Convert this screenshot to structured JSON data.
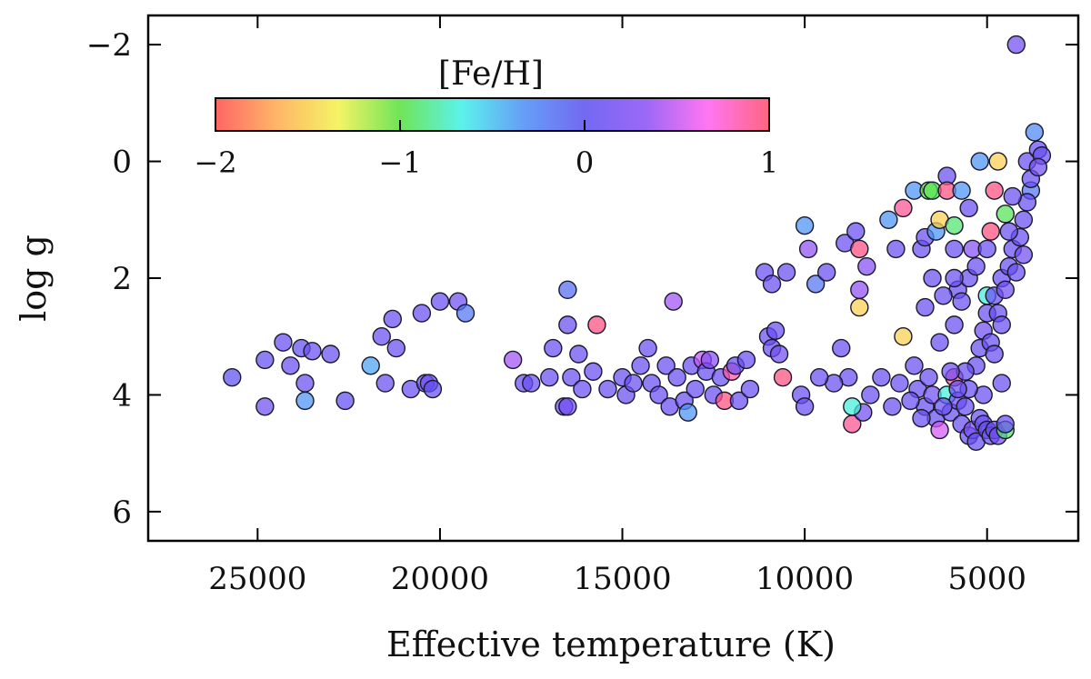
{
  "chart_data": {
    "type": "scatter",
    "title": "",
    "xlabel": "Effective temperature (K)",
    "ylabel": "log g",
    "xlim": [
      28000,
      2500
    ],
    "ylim": [
      6.5,
      -2.5
    ],
    "x_reversed": true,
    "y_reversed": true,
    "xticks": [
      25000,
      20000,
      15000,
      10000,
      5000
    ],
    "xtick_labels": [
      "25000",
      "20000",
      "15000",
      "10000",
      "5000"
    ],
    "yticks": [
      -2,
      0,
      2,
      4,
      6
    ],
    "ytick_labels": [
      "−2",
      "0",
      "2",
      "4",
      "6"
    ],
    "grid": false,
    "colorbar": {
      "title": "[Fe/H]",
      "range": [
        -2,
        1
      ],
      "ticks": [
        -2,
        -1,
        0,
        1
      ],
      "tick_labels": [
        "−2",
        "−1",
        "0",
        "1"
      ],
      "colormap": [
        "#ff4a4a",
        "#ffa94d",
        "#f2f24a",
        "#56e03a",
        "#3ff0e8",
        "#4a8ef5",
        "#5a4ff0",
        "#8a4df5",
        "#ff5ef0",
        "#ff4a6a"
      ],
      "placement": "top-left inside"
    },
    "points": [
      {
        "x": 25700,
        "y": 3.7,
        "feh": 0.0
      },
      {
        "x": 24800,
        "y": 3.4,
        "feh": 0.05
      },
      {
        "x": 24800,
        "y": 4.2,
        "feh": 0.15
      },
      {
        "x": 24300,
        "y": 3.1,
        "feh": 0.1
      },
      {
        "x": 24100,
        "y": 3.5,
        "feh": 0.1
      },
      {
        "x": 23800,
        "y": 3.2,
        "feh": 0.05
      },
      {
        "x": 23700,
        "y": 3.8,
        "feh": 0.1
      },
      {
        "x": 23700,
        "y": 4.1,
        "feh": -0.35
      },
      {
        "x": 23500,
        "y": 3.25,
        "feh": 0.1
      },
      {
        "x": 23000,
        "y": 3.3,
        "feh": 0.1
      },
      {
        "x": 22600,
        "y": 4.1,
        "feh": 0.05
      },
      {
        "x": 21900,
        "y": 3.5,
        "feh": -0.4
      },
      {
        "x": 21600,
        "y": 3.0,
        "feh": 0.1
      },
      {
        "x": 21500,
        "y": 3.8,
        "feh": 0.1
      },
      {
        "x": 21300,
        "y": 2.7,
        "feh": 0.1
      },
      {
        "x": 21200,
        "y": 3.2,
        "feh": 0.1
      },
      {
        "x": 20800,
        "y": 3.9,
        "feh": 0.1
      },
      {
        "x": 20500,
        "y": 2.6,
        "feh": 0.1
      },
      {
        "x": 20400,
        "y": 3.8,
        "feh": 0.1
      },
      {
        "x": 20300,
        "y": 3.8,
        "feh": 0.15
      },
      {
        "x": 20200,
        "y": 3.9,
        "feh": 0.05
      },
      {
        "x": 20000,
        "y": 2.4,
        "feh": 0.1
      },
      {
        "x": 19500,
        "y": 2.4,
        "feh": 0.15
      },
      {
        "x": 19300,
        "y": 2.6,
        "feh": -0.2
      },
      {
        "x": 18000,
        "y": 3.4,
        "feh": 0.4
      },
      {
        "x": 17700,
        "y": 3.8,
        "feh": 0.1
      },
      {
        "x": 17500,
        "y": 3.8,
        "feh": 0.1
      },
      {
        "x": 17000,
        "y": 3.7,
        "feh": 0.1
      },
      {
        "x": 16900,
        "y": 3.2,
        "feh": 0.1
      },
      {
        "x": 16600,
        "y": 4.2,
        "feh": 0.1
      },
      {
        "x": 16500,
        "y": 2.2,
        "feh": -0.15
      },
      {
        "x": 16500,
        "y": 4.2,
        "feh": 0.15
      },
      {
        "x": 16500,
        "y": 2.8,
        "feh": 0.1
      },
      {
        "x": 16400,
        "y": 3.7,
        "feh": 0.1
      },
      {
        "x": 16200,
        "y": 3.3,
        "feh": 0.1
      },
      {
        "x": 16100,
        "y": 3.9,
        "feh": 0.1
      },
      {
        "x": 15800,
        "y": 3.6,
        "feh": 0.1
      },
      {
        "x": 15700,
        "y": 2.8,
        "feh": 0.95
      },
      {
        "x": 15400,
        "y": 3.9,
        "feh": 0.1
      },
      {
        "x": 15000,
        "y": 3.7,
        "feh": 0.1
      },
      {
        "x": 14900,
        "y": 4.0,
        "feh": 0.1
      },
      {
        "x": 14700,
        "y": 3.8,
        "feh": 0.1
      },
      {
        "x": 14500,
        "y": 3.5,
        "feh": 0.1
      },
      {
        "x": 14300,
        "y": 3.2,
        "feh": 0.1
      },
      {
        "x": 14200,
        "y": 3.8,
        "feh": 0.1
      },
      {
        "x": 14000,
        "y": 4.0,
        "feh": 0.1
      },
      {
        "x": 13800,
        "y": 3.5,
        "feh": 0.1
      },
      {
        "x": 13700,
        "y": 4.2,
        "feh": 0.1
      },
      {
        "x": 13600,
        "y": 2.4,
        "feh": 0.4
      },
      {
        "x": 13500,
        "y": 3.7,
        "feh": 0.1
      },
      {
        "x": 13300,
        "y": 4.1,
        "feh": 0.1
      },
      {
        "x": 13200,
        "y": 4.3,
        "feh": -0.35
      },
      {
        "x": 13100,
        "y": 3.5,
        "feh": 0.1
      },
      {
        "x": 13000,
        "y": 3.9,
        "feh": 0.1
      },
      {
        "x": 12800,
        "y": 3.4,
        "feh": 0.5
      },
      {
        "x": 12700,
        "y": 3.6,
        "feh": 0.1
      },
      {
        "x": 12600,
        "y": 3.4,
        "feh": 0.3
      },
      {
        "x": 12500,
        "y": 4.0,
        "feh": 0.1
      },
      {
        "x": 12300,
        "y": 3.7,
        "feh": 0.1
      },
      {
        "x": 12200,
        "y": 4.1,
        "feh": 0.95
      },
      {
        "x": 12000,
        "y": 3.6,
        "feh": 0.85
      },
      {
        "x": 11900,
        "y": 3.5,
        "feh": 0.1
      },
      {
        "x": 11800,
        "y": 4.1,
        "feh": 0.1
      },
      {
        "x": 11600,
        "y": 3.4,
        "feh": 0.1
      },
      {
        "x": 11500,
        "y": 3.9,
        "feh": 0.1
      },
      {
        "x": 11100,
        "y": 1.9,
        "feh": 0.1
      },
      {
        "x": 11000,
        "y": 3.0,
        "feh": 0.1
      },
      {
        "x": 10900,
        "y": 2.1,
        "feh": 0.1
      },
      {
        "x": 10900,
        "y": 3.2,
        "feh": 0.1
      },
      {
        "x": 10800,
        "y": 2.9,
        "feh": 0.1
      },
      {
        "x": 10700,
        "y": 3.3,
        "feh": 0.15
      },
      {
        "x": 10600,
        "y": 3.7,
        "feh": 0.95
      },
      {
        "x": 10500,
        "y": 1.9,
        "feh": 0.1
      },
      {
        "x": 10100,
        "y": 4.0,
        "feh": 0.1
      },
      {
        "x": 10000,
        "y": 1.1,
        "feh": -0.35
      },
      {
        "x": 10000,
        "y": 4.2,
        "feh": 0.1
      },
      {
        "x": 9900,
        "y": 1.5,
        "feh": 0.35
      },
      {
        "x": 9700,
        "y": 2.1,
        "feh": -0.2
      },
      {
        "x": 9400,
        "y": 1.9,
        "feh": 0.1
      },
      {
        "x": 9000,
        "y": 3.2,
        "feh": 0.1
      },
      {
        "x": 8900,
        "y": 1.4,
        "feh": 0.1
      },
      {
        "x": 8800,
        "y": 3.7,
        "feh": 0.1
      },
      {
        "x": 8700,
        "y": 4.5,
        "feh": 0.9
      },
      {
        "x": 8600,
        "y": 1.2,
        "feh": 0.1
      },
      {
        "x": 8500,
        "y": 2.2,
        "feh": 0.35
      },
      {
        "x": 8500,
        "y": 2.5,
        "feh": -1.5
      },
      {
        "x": 8500,
        "y": 1.5,
        "feh": 0.95
      },
      {
        "x": 8300,
        "y": 1.8,
        "feh": 0.3
      },
      {
        "x": 7900,
        "y": 3.7,
        "feh": 0.1
      },
      {
        "x": 7700,
        "y": 1.0,
        "feh": -0.35
      },
      {
        "x": 7500,
        "y": 1.5,
        "feh": 0.1
      },
      {
        "x": 7300,
        "y": 0.8,
        "feh": 0.9
      },
      {
        "x": 7300,
        "y": 3.0,
        "feh": -1.5
      },
      {
        "x": 7000,
        "y": 0.5,
        "feh": -0.35
      },
      {
        "x": 6800,
        "y": 1.5,
        "feh": 0.1
      },
      {
        "x": 6700,
        "y": 1.3,
        "feh": 0.1
      },
      {
        "x": 6600,
        "y": 0.5,
        "feh": -1.05
      },
      {
        "x": 6500,
        "y": 0.5,
        "feh": -0.95
      },
      {
        "x": 6400,
        "y": 1.2,
        "feh": -0.35
      },
      {
        "x": 6300,
        "y": 1.0,
        "feh": -1.5
      },
      {
        "x": 6100,
        "y": 0.25,
        "feh": 0.1
      },
      {
        "x": 6100,
        "y": 0.5,
        "feh": 0.95
      },
      {
        "x": 5900,
        "y": 1.1,
        "feh": -0.9
      },
      {
        "x": 5900,
        "y": 1.5,
        "feh": 0.1
      },
      {
        "x": 5800,
        "y": 2.2,
        "feh": 0.1
      },
      {
        "x": 5700,
        "y": 0.5,
        "feh": -0.35
      },
      {
        "x": 5500,
        "y": 0.8,
        "feh": 0.1
      },
      {
        "x": 5400,
        "y": 1.5,
        "feh": 0.3
      },
      {
        "x": 5200,
        "y": 0.0,
        "feh": -0.35
      },
      {
        "x": 5000,
        "y": 2.3,
        "feh": -0.7
      },
      {
        "x": 4900,
        "y": 1.2,
        "feh": 0.95
      },
      {
        "x": 4800,
        "y": 0.5,
        "feh": 0.95
      },
      {
        "x": 4700,
        "y": 0.0,
        "feh": -1.5
      },
      {
        "x": 4500,
        "y": 0.9,
        "feh": -0.95
      },
      {
        "x": 4200,
        "y": -2.0,
        "feh": 0.15
      },
      {
        "x": 3900,
        "y": 0.0,
        "feh": 0.1
      },
      {
        "x": 3800,
        "y": 0.5,
        "feh": -0.2
      },
      {
        "x": 3700,
        "y": -0.5,
        "feh": -0.3
      },
      {
        "x": 7000,
        "y": 3.5,
        "feh": 0.1
      },
      {
        "x": 6900,
        "y": 3.9,
        "feh": 0.1
      },
      {
        "x": 6700,
        "y": 4.2,
        "feh": 0.1
      },
      {
        "x": 6500,
        "y": 4.0,
        "feh": 0.15
      },
      {
        "x": 6400,
        "y": 4.4,
        "feh": 0.1
      },
      {
        "x": 6300,
        "y": 4.6,
        "feh": 0.55
      },
      {
        "x": 6100,
        "y": 4.0,
        "feh": -0.7
      },
      {
        "x": 6000,
        "y": 4.3,
        "feh": 0.1
      },
      {
        "x": 5900,
        "y": 3.7,
        "feh": 0.9
      },
      {
        "x": 5800,
        "y": 4.1,
        "feh": 0.15
      },
      {
        "x": 5700,
        "y": 4.5,
        "feh": 0.1
      },
      {
        "x": 5600,
        "y": 4.2,
        "feh": 0.1
      },
      {
        "x": 5500,
        "y": 4.7,
        "feh": 0.1
      },
      {
        "x": 5400,
        "y": 4.6,
        "feh": 0.2
      },
      {
        "x": 5300,
        "y": 4.8,
        "feh": 0.1
      },
      {
        "x": 5200,
        "y": 4.4,
        "feh": 0.1
      },
      {
        "x": 5100,
        "y": 4.5,
        "feh": 0.15
      },
      {
        "x": 5000,
        "y": 4.6,
        "feh": 0.1
      },
      {
        "x": 4900,
        "y": 4.7,
        "feh": 0.1
      },
      {
        "x": 4800,
        "y": 4.6,
        "feh": 0.1
      },
      {
        "x": 4700,
        "y": 4.7,
        "feh": 0.15
      },
      {
        "x": 4500,
        "y": 4.6,
        "feh": -0.9
      },
      {
        "x": 5100,
        "y": 4.0,
        "feh": 0.1
      },
      {
        "x": 5200,
        "y": 3.2,
        "feh": 0.1
      },
      {
        "x": 5100,
        "y": 2.9,
        "feh": 0.15
      },
      {
        "x": 5000,
        "y": 2.6,
        "feh": 0.1
      },
      {
        "x": 4900,
        "y": 3.1,
        "feh": 0.1
      },
      {
        "x": 4800,
        "y": 2.3,
        "feh": 0.1
      },
      {
        "x": 4700,
        "y": 2.6,
        "feh": 0.1
      },
      {
        "x": 4600,
        "y": 2.0,
        "feh": 0.1
      },
      {
        "x": 4500,
        "y": 2.2,
        "feh": 0.15
      },
      {
        "x": 4400,
        "y": 1.8,
        "feh": 0.1
      },
      {
        "x": 4300,
        "y": 1.5,
        "feh": 0.1
      },
      {
        "x": 4200,
        "y": 1.9,
        "feh": 0.1
      },
      {
        "x": 4100,
        "y": 1.3,
        "feh": 0.1
      },
      {
        "x": 4000,
        "y": 1.0,
        "feh": 0.1
      },
      {
        "x": 4000,
        "y": 1.6,
        "feh": 0.15
      },
      {
        "x": 3900,
        "y": 0.7,
        "feh": 0.1
      },
      {
        "x": 3800,
        "y": 0.3,
        "feh": 0.1
      },
      {
        "x": 4300,
        "y": 0.6,
        "feh": 0.1
      },
      {
        "x": 4400,
        "y": 1.2,
        "feh": 0.1
      },
      {
        "x": 4600,
        "y": 2.8,
        "feh": 0.1
      },
      {
        "x": 5300,
        "y": 3.5,
        "feh": 0.1
      },
      {
        "x": 5500,
        "y": 3.9,
        "feh": 0.1
      },
      {
        "x": 5600,
        "y": 3.6,
        "feh": 0.1
      },
      {
        "x": 5800,
        "y": 3.9,
        "feh": 0.1
      },
      {
        "x": 6000,
        "y": 3.6,
        "feh": 0.15
      },
      {
        "x": 6200,
        "y": 4.2,
        "feh": 0.1
      },
      {
        "x": 6600,
        "y": 3.7,
        "feh": 0.1
      },
      {
        "x": 6800,
        "y": 4.4,
        "feh": 0.1
      },
      {
        "x": 7100,
        "y": 4.1,
        "feh": 0.1
      },
      {
        "x": 7400,
        "y": 3.8,
        "feh": 0.1
      },
      {
        "x": 7600,
        "y": 4.2,
        "feh": 0.1
      },
      {
        "x": 8200,
        "y": 4.0,
        "feh": 0.1
      },
      {
        "x": 8400,
        "y": 4.3,
        "feh": 0.15
      },
      {
        "x": 8700,
        "y": 4.2,
        "feh": -0.7
      },
      {
        "x": 9200,
        "y": 3.8,
        "feh": 0.1
      },
      {
        "x": 9600,
        "y": 3.7,
        "feh": 0.1
      },
      {
        "x": 5500,
        "y": 2.0,
        "feh": 0.1
      },
      {
        "x": 5700,
        "y": 2.4,
        "feh": 0.1
      },
      {
        "x": 5900,
        "y": 2.0,
        "feh": 0.1
      },
      {
        "x": 6200,
        "y": 2.3,
        "feh": 0.1
      },
      {
        "x": 6500,
        "y": 2.0,
        "feh": 0.1
      },
      {
        "x": 6700,
        "y": 2.5,
        "feh": 0.1
      },
      {
        "x": 6300,
        "y": 3.1,
        "feh": 0.1
      },
      {
        "x": 5900,
        "y": 2.8,
        "feh": 0.1
      },
      {
        "x": 5300,
        "y": 1.8,
        "feh": 0.1
      },
      {
        "x": 5000,
        "y": 1.5,
        "feh": 0.1
      },
      {
        "x": 4800,
        "y": 3.3,
        "feh": 0.1
      },
      {
        "x": 4600,
        "y": 3.8,
        "feh": 0.1
      },
      {
        "x": 4500,
        "y": 4.5,
        "feh": 0.1
      },
      {
        "x": 3600,
        "y": -0.2,
        "feh": 0.1
      },
      {
        "x": 3500,
        "y": -0.1,
        "feh": 0.1
      },
      {
        "x": 3600,
        "y": 0.1,
        "feh": 0.15
      }
    ]
  }
}
